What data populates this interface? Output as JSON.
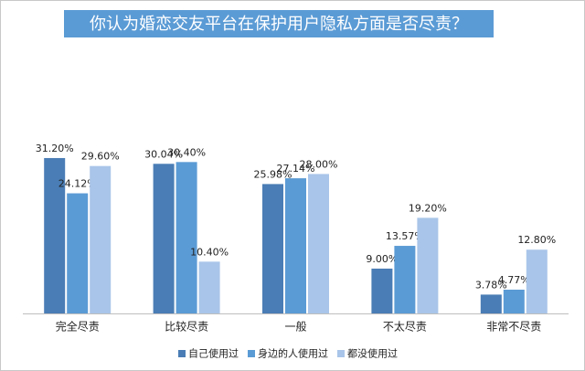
{
  "chart_data": {
    "type": "bar",
    "title": "你认为婚恋交友平台在保护用户隐私方面是否尽责？",
    "categories": [
      "完全尽责",
      "比较尽责",
      "一般",
      "不太尽责",
      "非常不尽责"
    ],
    "series": [
      {
        "name": "自己使用过",
        "color": "#4a7db5",
        "values": [
          31.2,
          30.04,
          25.98,
          9.0,
          3.78
        ],
        "value_labels": [
          "31.20%",
          "30.04%",
          "25.98%",
          "9.00%",
          "3.78%"
        ]
      },
      {
        "name": "身边的人使用过",
        "color": "#5b9bd5",
        "values": [
          24.12,
          30.4,
          27.14,
          13.57,
          4.77
        ],
        "value_labels": [
          "24.12%",
          "30.40%",
          "27.14%",
          "13.57%",
          "4.77%"
        ]
      },
      {
        "name": "都没使用过",
        "color": "#a9c5e9",
        "values": [
          29.6,
          10.4,
          28.0,
          19.2,
          12.8
        ],
        "value_labels": [
          "29.60%",
          "10.40%",
          "28.00%",
          "19.20%",
          "12.80%"
        ]
      }
    ]
  }
}
